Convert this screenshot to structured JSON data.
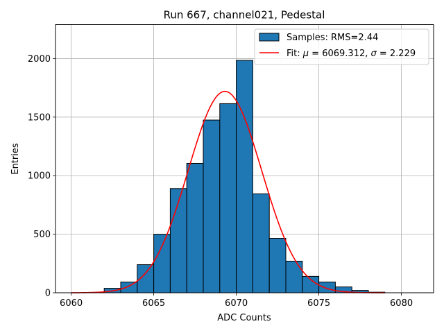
{
  "chart_data": {
    "type": "bar",
    "title": "Run 667, channel021, Pedestal",
    "xlabel": "ADC Counts",
    "ylabel": "Entries",
    "xlim": [
      6059.05,
      6081.95
    ],
    "ylim": [
      0,
      2290
    ],
    "xticks": [
      6060,
      6065,
      6070,
      6075,
      6080
    ],
    "yticks": [
      0,
      500,
      1000,
      1500,
      2000
    ],
    "grid": true,
    "legend_position": "top-right",
    "histogram": {
      "name": "Samples: RMS=2.44",
      "color": "#1f77b4",
      "edgecolor": "#000000",
      "bins": [
        {
          "x0": 6060,
          "x1": 6061,
          "count": 0
        },
        {
          "x0": 6061,
          "x1": 6062,
          "count": 2
        },
        {
          "x0": 6062,
          "x1": 6063,
          "count": 38
        },
        {
          "x0": 6063,
          "x1": 6064,
          "count": 92
        },
        {
          "x0": 6064,
          "x1": 6065,
          "count": 240
        },
        {
          "x0": 6065,
          "x1": 6066,
          "count": 500
        },
        {
          "x0": 6066,
          "x1": 6067,
          "count": 890
        },
        {
          "x0": 6067,
          "x1": 6068,
          "count": 1105
        },
        {
          "x0": 6068,
          "x1": 6069,
          "count": 1475
        },
        {
          "x0": 6069,
          "x1": 6070,
          "count": 1615
        },
        {
          "x0": 6070,
          "x1": 6071,
          "count": 1985
        },
        {
          "x0": 6071,
          "x1": 6072,
          "count": 845
        },
        {
          "x0": 6072,
          "x1": 6073,
          "count": 465
        },
        {
          "x0": 6073,
          "x1": 6074,
          "count": 270
        },
        {
          "x0": 6074,
          "x1": 6075,
          "count": 140
        },
        {
          "x0": 6075,
          "x1": 6076,
          "count": 92
        },
        {
          "x0": 6076,
          "x1": 6077,
          "count": 50
        },
        {
          "x0": 6077,
          "x1": 6078,
          "count": 20
        },
        {
          "x0": 6078,
          "x1": 6079,
          "count": 5
        }
      ]
    },
    "fit": {
      "name": "Fit: μ = 6069.312, σ = 2.229",
      "legend_prefix": "Fit: ",
      "mu_symbol": "μ",
      "mu_text": " = 6069.312, ",
      "sigma_symbol": "σ",
      "sigma_text": " = 2.229",
      "color": "#ff0000",
      "mu": 6069.312,
      "sigma": 2.229,
      "amplitude": 1720,
      "x_range": [
        6060,
        6079
      ]
    }
  }
}
